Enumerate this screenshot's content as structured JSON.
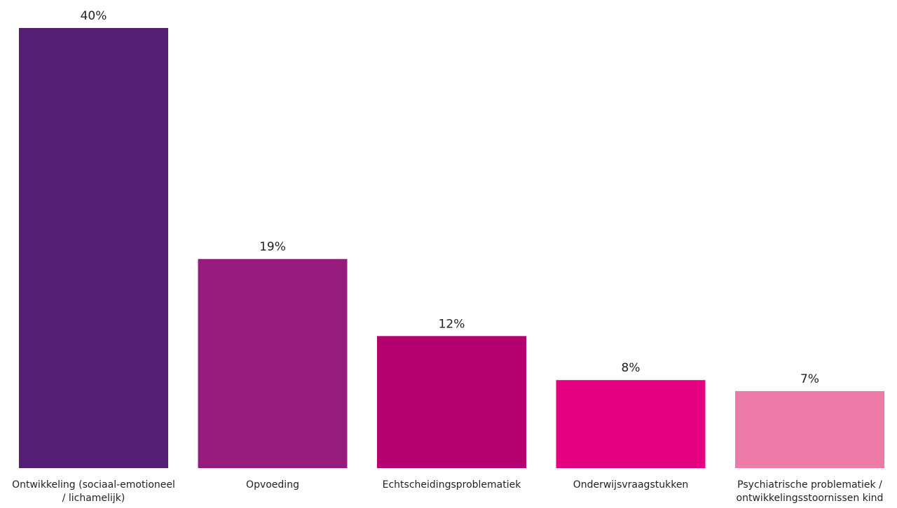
{
  "chart_data": {
    "type": "bar",
    "categories": [
      [
        "Ontwikkeling (sociaal-emotioneel",
        "/ lichamelijk)"
      ],
      [
        "Opvoeding"
      ],
      [
        "Echtscheidingsproblematiek"
      ],
      [
        "Onderwijsvraagstukken"
      ],
      [
        "Psychiatrische problematiek /",
        "ontwikkelingsstoornissen kind"
      ]
    ],
    "values": [
      40,
      19,
      12,
      8,
      7
    ],
    "value_labels": [
      "40%",
      "19%",
      "12%",
      "8%",
      "7%"
    ],
    "colors": [
      "#521f73",
      "#951c7c",
      "#b4016f",
      "#e5007f",
      "#ee7aa8"
    ],
    "ylim": [
      0,
      40
    ],
    "grid": false,
    "legend": "none"
  }
}
